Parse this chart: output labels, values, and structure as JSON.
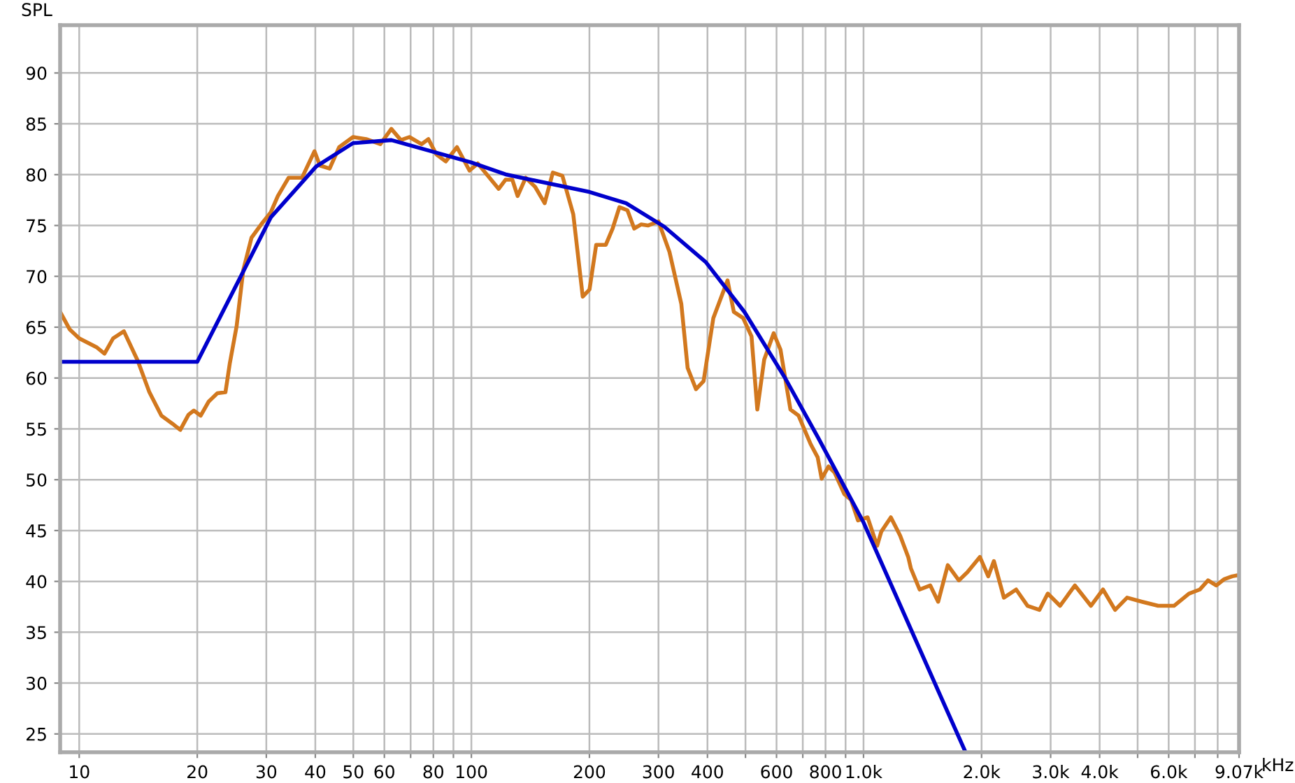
{
  "chart_data": {
    "type": "line",
    "ylabel": "SPL",
    "log": "x",
    "grid": true,
    "line_style": "solid",
    "xlim": [
      8.94,
      9070
    ],
    "ylim": [
      23.2,
      94.7
    ],
    "xticks": [
      10,
      20,
      30,
      40,
      50,
      60,
      {
        "value": 70,
        "label": null
      },
      80,
      {
        "value": 90,
        "label": null
      },
      100,
      200,
      300,
      400,
      {
        "value": 500,
        "label": null
      },
      600,
      {
        "value": 700,
        "label": null
      },
      800,
      {
        "value": 900,
        "label": null
      },
      {
        "value": 1000,
        "label": "1.0k"
      },
      {
        "value": 2000,
        "label": "2.0k"
      },
      {
        "value": 3000,
        "label": "3.0k"
      },
      {
        "value": 4000,
        "label": "4.0k"
      },
      {
        "value": 5000,
        "label": null
      },
      {
        "value": 6000,
        "label": "6.0k"
      },
      {
        "value": 7000,
        "label": null
      },
      {
        "value": 8000,
        "label": null
      },
      {
        "value": 9070,
        "label": "9.07k"
      }
    ],
    "xlabel": "kHz",
    "yticks": [
      25,
      30,
      35,
      40,
      45,
      50,
      55,
      60,
      65,
      70,
      75,
      80,
      85,
      90
    ],
    "series": [
      {
        "color": "#d2781e",
        "x": [
          8.94,
          9.45,
          10,
          11.1,
          11.6,
          12.2,
          13.0,
          14.1,
          15.1,
          16.2,
          17.3,
          18.1,
          19.0,
          19.6,
          20.4,
          21.4,
          22.5,
          23.6,
          24.2,
          25.2,
          26.2,
          27.5,
          29.1,
          30.8,
          32.1,
          34.2,
          37.0,
          39.8,
          41.1,
          43.5,
          46.0,
          49.9,
          53.9,
          58.6,
          62.5,
          66.1,
          69.5,
          74.6,
          77.7,
          81.4,
          86.0,
          91.9,
          98.9,
          103.8,
          117.4,
          122.2,
          127.2,
          131.2,
          137.6,
          145.4,
          153.8,
          161.3,
          170.6,
          181.9,
          192.3,
          200.1,
          208.1,
          220.2,
          229.2,
          238.5,
          250.0,
          260.2,
          270.8,
          282,
          300,
          320,
          343,
          356,
          374,
          391,
          414,
          450,
          467,
          493,
          518,
          536,
          558,
          590,
          614,
          651,
          683,
          733,
          764,
          782,
          814,
          844,
          893,
          930,
          968,
          1024,
          1083,
          1110,
          1174,
          1240,
          1300,
          1320,
          1390,
          1480,
          1550,
          1640,
          1750,
          1840,
          1980,
          2080,
          2150,
          2280,
          2450,
          2620,
          2810,
          2950,
          3170,
          3460,
          3800,
          4080,
          4380,
          4700,
          5130,
          5640,
          6190,
          6760,
          7200,
          7560,
          7930,
          8300,
          8710,
          8970
        ],
        "values": [
          66.5,
          64.8,
          63.9,
          63.0,
          62.4,
          63.9,
          64.6,
          61.7,
          58.6,
          56.3,
          55.5,
          54.9,
          56.4,
          56.8,
          56.3,
          57.7,
          58.5,
          58.6,
          61.4,
          65.1,
          70.6,
          73.8,
          75.1,
          76.3,
          77.9,
          79.7,
          79.7,
          82.3,
          80.9,
          80.6,
          82.7,
          83.7,
          83.5,
          83.0,
          84.5,
          83.4,
          83.7,
          83.0,
          83.5,
          82.0,
          81.3,
          82.7,
          80.4,
          81.1,
          78.6,
          79.5,
          79.5,
          77.9,
          79.7,
          78.8,
          77.2,
          80.2,
          79.9,
          76.1,
          68.0,
          68.7,
          73.1,
          73.1,
          74.7,
          76.8,
          76.5,
          74.7,
          75.1,
          75.0,
          75.4,
          72.4,
          67.3,
          61.0,
          58.9,
          59.7,
          65.9,
          69.6,
          66.5,
          65.9,
          64.1,
          56.9,
          61.8,
          64.4,
          62.8,
          56.9,
          56.3,
          53.5,
          52.2,
          50.1,
          51.3,
          50.7,
          48.6,
          48.0,
          46.0,
          46.3,
          43.5,
          44.9,
          46.3,
          44.5,
          42.4,
          41.3,
          39.2,
          39.6,
          38.0,
          41.6,
          40.1,
          40.9,
          42.4,
          40.5,
          42.0,
          38.4,
          39.2,
          37.6,
          37.2,
          38.8,
          37.6,
          39.6,
          37.6,
          39.2,
          37.2,
          38.4,
          38.0,
          37.6,
          37.6,
          38.8,
          39.2,
          40.1,
          39.6,
          40.2,
          40.5,
          40.6
        ]
      },
      {
        "color": "#0000cc",
        "x": [
          8.94,
          20,
          30.8,
          40.2,
          49.9,
          62.5,
          100,
          123,
          200,
          248,
          310,
          396,
          497,
          631,
          767,
          1000,
          1556,
          1811
        ],
        "values": [
          61.6,
          61.6,
          75.8,
          80.8,
          83.1,
          83.4,
          81.2,
          80.0,
          78.3,
          77.2,
          74.9,
          71.4,
          66.5,
          60.0,
          54.1,
          45.8,
          29.1,
          23.4
        ]
      }
    ]
  }
}
